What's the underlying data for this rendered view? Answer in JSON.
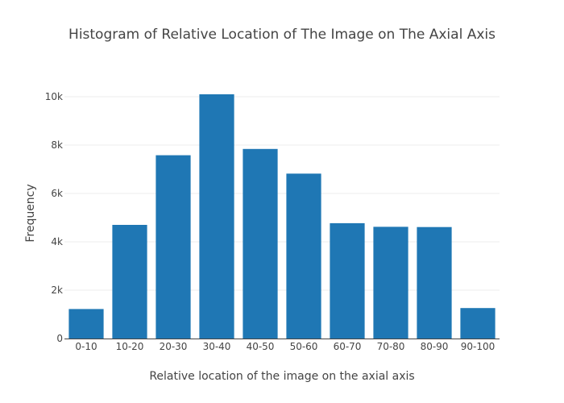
{
  "chart_data": {
    "type": "bar",
    "title": "Histogram of Relative Location of The Image on The Axial Axis",
    "xlabel": "Relative location of the image on the axial axis",
    "ylabel": "Frequency",
    "categories": [
      "0-10",
      "10-20",
      "20-30",
      "30-40",
      "40-50",
      "50-60",
      "60-70",
      "70-80",
      "80-90",
      "90-100"
    ],
    "values": [
      1220,
      4700,
      7580,
      10100,
      7840,
      6820,
      4770,
      4620,
      4610,
      1260
    ],
    "ylim": [
      0,
      10500
    ],
    "yticks": [
      0,
      2000,
      4000,
      6000,
      8000,
      10000
    ],
    "ytick_labels": [
      "0",
      "2k",
      "4k",
      "6k",
      "8k",
      "10k"
    ],
    "bar_color": "#1f77b4",
    "grid": true
  }
}
